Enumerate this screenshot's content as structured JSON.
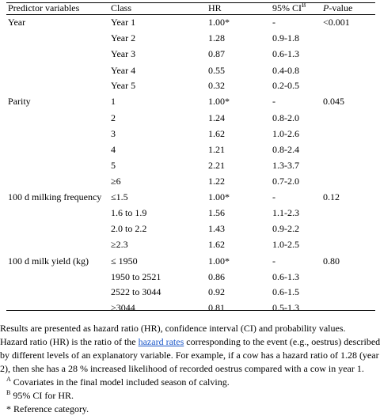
{
  "header": {
    "predictor": "Predictor variables",
    "class": "Class",
    "hr": "HR",
    "ci": "95% CI",
    "ci_sup": "B",
    "p_italic": "P",
    "p_rest": "-value"
  },
  "rows": [
    {
      "pred": "Year",
      "class": "Year 1",
      "hr": "1.00*",
      "ci": "-",
      "p": "<0.001"
    },
    {
      "pred": "",
      "class": "Year 2",
      "hr": "1.28",
      "ci": "0.9-1.8",
      "p": ""
    },
    {
      "pred": "",
      "class": "Year 3",
      "hr": "0.87",
      "ci": "0.6-1.3",
      "p": ""
    },
    {
      "pred": "",
      "class": "Year 4",
      "hr": "0.55",
      "ci": "0.4-0.8",
      "p": ""
    },
    {
      "pred": "",
      "class": "Year 5",
      "hr": "0.32",
      "ci": "0.2-0.5",
      "p": ""
    },
    {
      "pred": "Parity",
      "class": "1",
      "hr": "1.00*",
      "ci": "-",
      "p": "0.045"
    },
    {
      "pred": "",
      "class": "2",
      "hr": "1.24",
      "ci": "0.8-2.0",
      "p": ""
    },
    {
      "pred": "",
      "class": "3",
      "hr": "1.62",
      "ci": "1.0-2.6",
      "p": ""
    },
    {
      "pred": "",
      "class": "4",
      "hr": "1.21",
      "ci": "0.8-2.4",
      "p": ""
    },
    {
      "pred": "",
      "class": "5",
      "hr": "2.21",
      "ci": "1.3-3.7",
      "p": ""
    },
    {
      "pred": "",
      "class": "≥6",
      "hr": "1.22",
      "ci": "0.7-2.0",
      "p": ""
    },
    {
      "pred": "100 d milking frequency",
      "class": "≤1.5",
      "hr": "1.00*",
      "ci": "-",
      "p": "0.12"
    },
    {
      "pred": "",
      "class": "1.6 to 1.9",
      "hr": "1.56",
      "ci": "1.1-2.3",
      "p": ""
    },
    {
      "pred": "",
      "class": "2.0 to 2.2",
      "hr": "1.43",
      "ci": "0.9-2.2",
      "p": ""
    },
    {
      "pred": "",
      "class": "≥2.3",
      "hr": "1.62",
      "ci": "1.0-2.5",
      "p": ""
    },
    {
      "pred": "100 d milk yield (kg)",
      "class": "≤ 1950",
      "hr": "1.00*",
      "ci": "-",
      "p": "0.80"
    },
    {
      "pred": "",
      "class": "1950 to 2521",
      "hr": "0.86",
      "ci": "0.6-1.3",
      "p": ""
    },
    {
      "pred": "",
      "class": "2522 to 3044",
      "hr": "0.92",
      "ci": "0.6-1.5",
      "p": ""
    },
    {
      "pred": "",
      "class": ">3044",
      "hr": "0.81",
      "ci": "0.5-1.3",
      "p": ""
    }
  ],
  "notes": {
    "line1": "Results are presented as hazard ratio (HR), confidence interval (CI) and probability values.",
    "line2_a": "Hazard ratio (HR) is the ratio of the ",
    "line2_link": "hazard rates",
    "line2_b": " corresponding to the event (e.g., oestrus) described",
    "line3": "by different levels of an explanatory variable. For example, if a cow has a hazard ratio of 1.28 (year",
    "line4": "2), then she has a 28 % increased likelihood of recorded oestrus compared with a cow in year 1.",
    "noteA_sup": "A",
    "noteA": " Covariates in the final model included season of calving.",
    "noteB_sup": "B",
    "noteB": " 95% CI for HR.",
    "noteStar": "* Reference category."
  }
}
